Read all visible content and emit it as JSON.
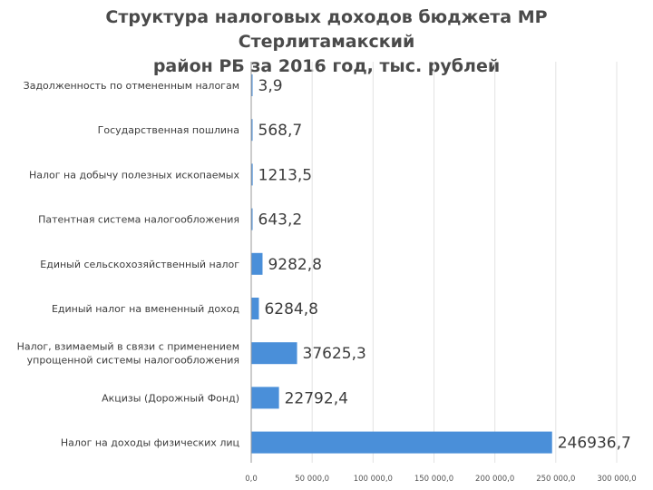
{
  "colors": {
    "bar": "#4a8fd9",
    "grid": "#e3e3e3",
    "axis": "#9a9a9a"
  },
  "chart_data": {
    "type": "bar",
    "orientation": "horizontal",
    "title": [
      "Структура налоговых доходов бюджета МР Стерлитамакский",
      "район РБ за 2016 год, тыс. рублей"
    ],
    "categories": [
      [
        "Задолженность по отмененным налогам"
      ],
      [
        "Государственная пошлина"
      ],
      [
        "Налог на добычу полезных ископаемых"
      ],
      [
        "Патентная система налогообложения"
      ],
      [
        "Единый сельскохозяйственный налог"
      ],
      [
        "Единый налог на вмененный доход"
      ],
      [
        "Налог, взимаемый в связи с применением",
        "упрощенной системы налогообложения"
      ],
      [
        "Акцизы (Дорожный  Фонд)"
      ],
      [
        "Налог на доходы физических лиц"
      ]
    ],
    "values": [
      3.9,
      568.7,
      1213.5,
      643.2,
      9282.8,
      6284.8,
      37625.3,
      22792.4,
      246936.7
    ],
    "value_labels": [
      "3,9",
      "568,7",
      "1213,5",
      "643,2",
      "9282,8",
      "6284,8",
      "37625,3",
      "22792,4",
      "246936,7"
    ],
    "xlim": [
      0,
      300000
    ],
    "xticks": [
      0,
      50000,
      100000,
      150000,
      200000,
      250000,
      300000
    ],
    "xtick_labels": [
      "0,0",
      "50 000,0",
      "100 000,0",
      "150 000,0",
      "200 000,0",
      "250 000,0",
      "300 000,0"
    ],
    "grid": true
  }
}
